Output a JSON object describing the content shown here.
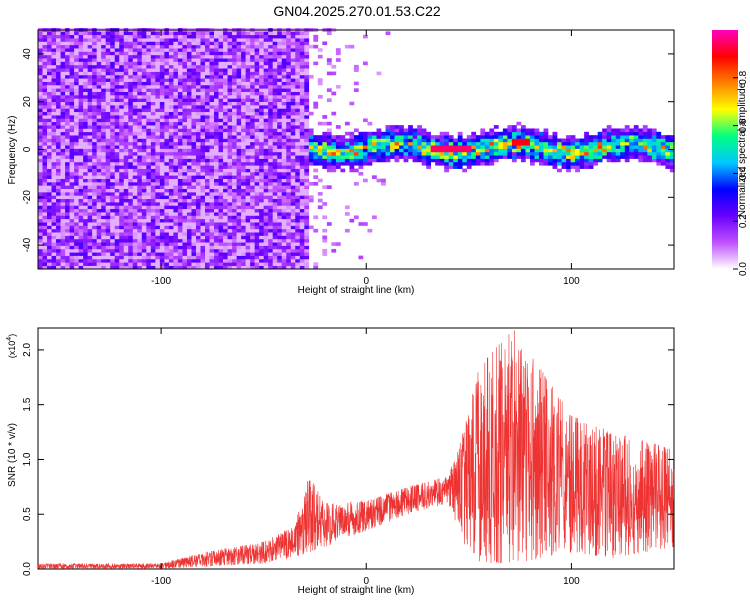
{
  "title": "GN04.2025.270.01.53.C22",
  "chart_data": [
    {
      "type": "heatmap",
      "xlabel": "Height of straight line (km)",
      "ylabel": "Frequency (Hz)",
      "xlim": [
        -160,
        150
      ],
      "ylim": [
        -50,
        50
      ],
      "xticks": [
        -100,
        0,
        100
      ],
      "yticks": [
        -40,
        -20,
        0,
        20,
        40
      ],
      "colorbar": {
        "label": "Normalized spectral amplitude",
        "ticks": [
          0.0,
          0.2,
          0.4,
          0.6,
          0.8
        ],
        "range": [
          0,
          1
        ],
        "colors": [
          "#ffffff",
          "#c050ff",
          "#6a00ff",
          "#0000ff",
          "#00c8ff",
          "#00ff80",
          "#ffff00",
          "#ff8000",
          "#ff0000",
          "#ff00c0"
        ]
      },
      "features": [
        {
          "region": "broadband noise",
          "x": [
            -160,
            -30
          ],
          "frequency_band": [
            -50,
            50
          ],
          "amplitude": 0.15
        },
        {
          "region": "narrow band near 0 Hz",
          "x": [
            -30,
            150
          ],
          "frequency_band": [
            -8,
            6
          ],
          "amplitude": 0.5
        },
        {
          "region": "peak",
          "x": [
            30,
            50
          ],
          "frequency": 0,
          "amplitude": 0.95
        },
        {
          "region": "peak",
          "x": [
            70,
            78
          ],
          "frequency": 2,
          "amplitude": 0.9
        }
      ]
    },
    {
      "type": "line",
      "xlabel": "Height of straight line (km)",
      "ylabel": "SNR (10 * v/v)",
      "y_scale_label": "(x10",
      "y_scale_exp": "4",
      "xlim": [
        -160,
        150
      ],
      "ylim": [
        0,
        2.2
      ],
      "xticks": [
        -100,
        0,
        100
      ],
      "yticks": [
        "0.0",
        "0.5",
        "1.0",
        "1.5",
        "2.0"
      ],
      "color": "#ee3333",
      "envelope": [
        {
          "x": -160,
          "low": 0.0,
          "high": 0.05
        },
        {
          "x": -100,
          "low": 0.0,
          "high": 0.05
        },
        {
          "x": -80,
          "low": 0.02,
          "high": 0.15
        },
        {
          "x": -50,
          "low": 0.05,
          "high": 0.25
        },
        {
          "x": -35,
          "low": 0.1,
          "high": 0.4
        },
        {
          "x": -28,
          "low": 0.15,
          "high": 0.85
        },
        {
          "x": -20,
          "low": 0.2,
          "high": 0.6
        },
        {
          "x": 0,
          "low": 0.35,
          "high": 0.62
        },
        {
          "x": 20,
          "low": 0.5,
          "high": 0.75
        },
        {
          "x": 40,
          "low": 0.6,
          "high": 0.85
        },
        {
          "x": 48,
          "low": 0.2,
          "high": 1.3
        },
        {
          "x": 55,
          "low": 0.05,
          "high": 1.85
        },
        {
          "x": 72,
          "low": 0.05,
          "high": 2.2
        },
        {
          "x": 100,
          "low": 0.15,
          "high": 1.4
        },
        {
          "x": 120,
          "low": 0.1,
          "high": 1.25
        },
        {
          "x": 150,
          "low": 0.2,
          "high": 1.1
        }
      ]
    }
  ]
}
